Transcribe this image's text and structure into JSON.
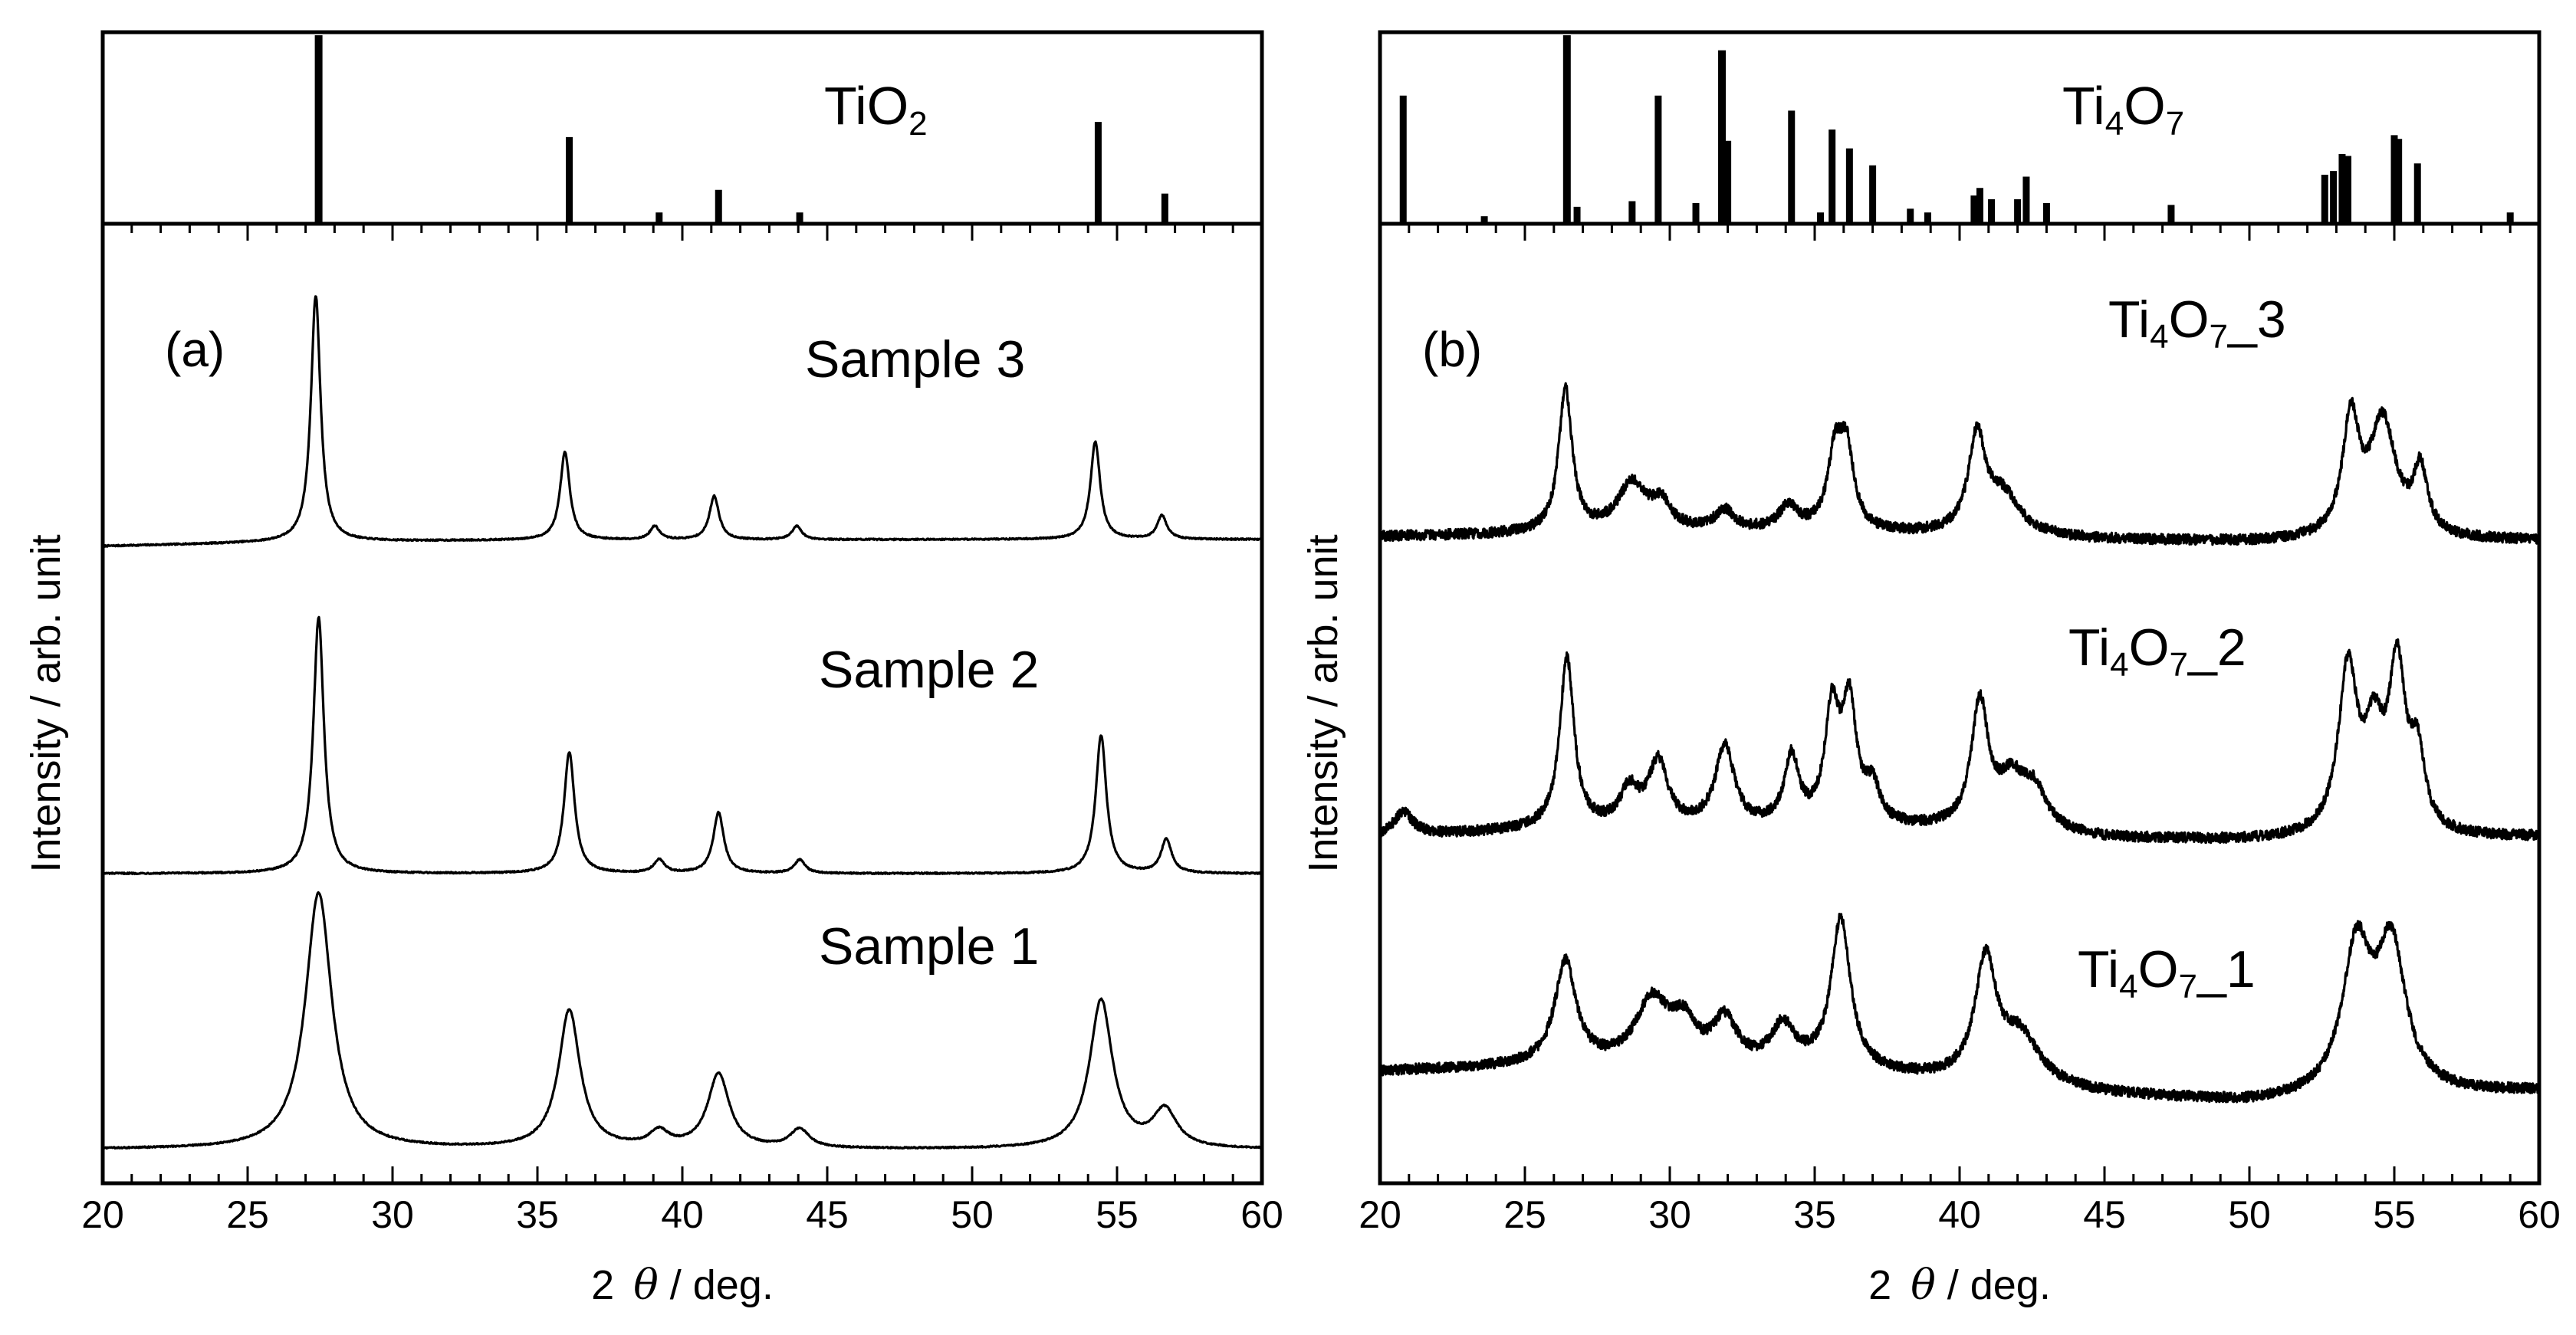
{
  "chart_data": [
    {
      "type": "line",
      "panel_label": "(a)",
      "xlabel_prefix": "2",
      "xlabel_symbol": "θ",
      "xlabel_suffix": " / deg.",
      "ylabel": "Intensity / arb. unit",
      "xlim": [
        20,
        60
      ],
      "xticks": [
        20,
        25,
        30,
        35,
        40,
        45,
        50,
        55,
        60
      ],
      "reference": {
        "name_main": "TiO",
        "name_sub": "2",
        "name_tail": "",
        "peaks": [
          {
            "x": 27.45,
            "intensity": 100
          },
          {
            "x": 36.1,
            "intensity": 46
          },
          {
            "x": 39.2,
            "intensity": 6
          },
          {
            "x": 41.25,
            "intensity": 18
          },
          {
            "x": 44.05,
            "intensity": 6
          },
          {
            "x": 54.35,
            "intensity": 54
          },
          {
            "x": 56.65,
            "intensity": 16
          }
        ]
      },
      "series": [
        {
          "name": "Sample 3",
          "label_text": "Sample 3",
          "baseline": [
            [
              20,
              0.62
            ],
            [
              27,
              0.75
            ],
            [
              35,
              0.8
            ],
            [
              40,
              0.8
            ],
            [
              50,
              0.82
            ],
            [
              60,
              0.82
            ]
          ],
          "noise": 0.02,
          "peaks": [
            {
              "x": 27.35,
              "height": 7.3,
              "width": 0.2
            },
            {
              "x": 35.95,
              "height": 2.6,
              "width": 0.2
            },
            {
              "x": 39.05,
              "height": 0.4,
              "width": 0.2
            },
            {
              "x": 41.1,
              "height": 1.3,
              "width": 0.2
            },
            {
              "x": 43.95,
              "height": 0.4,
              "width": 0.2
            },
            {
              "x": 54.25,
              "height": 2.9,
              "width": 0.2
            },
            {
              "x": 56.55,
              "height": 0.7,
              "width": 0.2
            }
          ]
        },
        {
          "name": "Sample 2",
          "label_text": "Sample 2",
          "baseline": [
            [
              20,
              0
            ],
            [
              60,
              0
            ]
          ],
          "noise": 0.02,
          "peaks": [
            {
              "x": 27.45,
              "height": 7.6,
              "width": 0.22
            },
            {
              "x": 36.1,
              "height": 3.6,
              "width": 0.22
            },
            {
              "x": 39.2,
              "height": 0.4,
              "width": 0.22
            },
            {
              "x": 41.25,
              "height": 1.8,
              "width": 0.22
            },
            {
              "x": 44.05,
              "height": 0.4,
              "width": 0.22
            },
            {
              "x": 54.45,
              "height": 4.1,
              "width": 0.22
            },
            {
              "x": 56.7,
              "height": 1.0,
              "width": 0.22
            }
          ]
        },
        {
          "name": "Sample 1",
          "label_text": "Sample 1",
          "baseline": [
            [
              20,
              0
            ],
            [
              60,
              0
            ]
          ],
          "noise": 0.02,
          "peaks": [
            {
              "x": 27.45,
              "height": 7.6,
              "width": 0.55
            },
            {
              "x": 36.1,
              "height": 4.1,
              "width": 0.45
            },
            {
              "x": 39.2,
              "height": 0.45,
              "width": 0.4
            },
            {
              "x": 41.25,
              "height": 2.2,
              "width": 0.45
            },
            {
              "x": 44.05,
              "height": 0.55,
              "width": 0.4
            },
            {
              "x": 54.45,
              "height": 4.4,
              "width": 0.48
            },
            {
              "x": 56.65,
              "height": 1.1,
              "width": 0.5
            }
          ]
        }
      ]
    },
    {
      "type": "line",
      "panel_label": "(b)",
      "xlabel_prefix": "2",
      "xlabel_symbol": "θ",
      "xlabel_suffix": " / deg.",
      "ylabel": "Intensity / arb. unit",
      "xlim": [
        20,
        60
      ],
      "xticks": [
        20,
        25,
        30,
        35,
        40,
        45,
        50,
        55,
        60
      ],
      "reference": {
        "name_main": "Ti",
        "name_sub": "4",
        "name_tail": "O",
        "name_sub2": "7",
        "peaks": [
          {
            "x": 20.8,
            "intensity": 68
          },
          {
            "x": 23.6,
            "intensity": 4
          },
          {
            "x": 26.45,
            "intensity": 100
          },
          {
            "x": 26.8,
            "intensity": 9
          },
          {
            "x": 28.7,
            "intensity": 12
          },
          {
            "x": 29.6,
            "intensity": 68
          },
          {
            "x": 30.9,
            "intensity": 11
          },
          {
            "x": 31.8,
            "intensity": 92
          },
          {
            "x": 32.0,
            "intensity": 44
          },
          {
            "x": 34.2,
            "intensity": 60
          },
          {
            "x": 35.2,
            "intensity": 6
          },
          {
            "x": 35.6,
            "intensity": 50
          },
          {
            "x": 36.2,
            "intensity": 40
          },
          {
            "x": 37.0,
            "intensity": 31
          },
          {
            "x": 38.3,
            "intensity": 8
          },
          {
            "x": 38.9,
            "intensity": 6
          },
          {
            "x": 40.5,
            "intensity": 15
          },
          {
            "x": 40.7,
            "intensity": 19
          },
          {
            "x": 41.1,
            "intensity": 13
          },
          {
            "x": 42.0,
            "intensity": 13
          },
          {
            "x": 42.3,
            "intensity": 25
          },
          {
            "x": 43.0,
            "intensity": 11
          },
          {
            "x": 47.3,
            "intensity": 10
          },
          {
            "x": 52.6,
            "intensity": 26
          },
          {
            "x": 52.9,
            "intensity": 28
          },
          {
            "x": 53.2,
            "intensity": 37
          },
          {
            "x": 53.4,
            "intensity": 36
          },
          {
            "x": 55.0,
            "intensity": 47
          },
          {
            "x": 55.15,
            "intensity": 45
          },
          {
            "x": 55.8,
            "intensity": 32
          },
          {
            "x": 59.0,
            "intensity": 6
          }
        ]
      },
      "series": [
        {
          "name": "Ti4O7_3",
          "label_main": "Ti",
          "label_sub": "4",
          "label_tail": "O",
          "label_sub2": "7",
          "label_end": "_3",
          "baseline": [
            [
              20,
              0.15
            ],
            [
              25,
              0.2
            ],
            [
              30,
              0.25
            ],
            [
              35,
              0.25
            ],
            [
              40,
              0.15
            ],
            [
              45,
              0.05
            ],
            [
              50,
              0.0
            ],
            [
              60,
              0.05
            ]
          ],
          "noise": 0.13,
          "peaks": [
            {
              "x": 26.4,
              "height": 3.6,
              "width": 0.28
            },
            {
              "x": 28.7,
              "height": 1.2,
              "width": 0.6
            },
            {
              "x": 29.7,
              "height": 0.6,
              "width": 0.4
            },
            {
              "x": 31.9,
              "height": 0.5,
              "width": 0.4
            },
            {
              "x": 34.1,
              "height": 0.6,
              "width": 0.4
            },
            {
              "x": 35.7,
              "height": 1.8,
              "width": 0.3
            },
            {
              "x": 36.1,
              "height": 1.9,
              "width": 0.3
            },
            {
              "x": 40.6,
              "height": 2.4,
              "width": 0.35
            },
            {
              "x": 41.5,
              "height": 1.0,
              "width": 0.7
            },
            {
              "x": 53.5,
              "height": 2.9,
              "width": 0.35
            },
            {
              "x": 54.6,
              "height": 2.9,
              "width": 0.55
            },
            {
              "x": 55.9,
              "height": 1.6,
              "width": 0.3
            }
          ]
        },
        {
          "name": "Ti4O7_2",
          "label_main": "Ti",
          "label_sub": "4",
          "label_tail": "O",
          "label_sub2": "7",
          "label_end": "_2",
          "baseline": [
            [
              20,
              0.1
            ],
            [
              25,
              0.25
            ],
            [
              30,
              0.3
            ],
            [
              35,
              0.3
            ],
            [
              40,
              0.25
            ],
            [
              45,
              0.05
            ],
            [
              50,
              0.0
            ],
            [
              60,
              0.1
            ]
          ],
          "noise": 0.13,
          "peaks": [
            {
              "x": 20.8,
              "height": 0.6,
              "width": 0.4
            },
            {
              "x": 26.45,
              "height": 4.3,
              "width": 0.3
            },
            {
              "x": 28.6,
              "height": 0.9,
              "width": 0.4
            },
            {
              "x": 29.6,
              "height": 1.6,
              "width": 0.4
            },
            {
              "x": 31.9,
              "height": 2.0,
              "width": 0.4
            },
            {
              "x": 34.2,
              "height": 1.7,
              "width": 0.3
            },
            {
              "x": 35.6,
              "height": 2.8,
              "width": 0.3
            },
            {
              "x": 36.2,
              "height": 2.9,
              "width": 0.3
            },
            {
              "x": 37.0,
              "height": 0.9,
              "width": 0.3
            },
            {
              "x": 40.7,
              "height": 3.1,
              "width": 0.35
            },
            {
              "x": 41.8,
              "height": 1.2,
              "width": 0.6
            },
            {
              "x": 42.6,
              "height": 0.9,
              "width": 0.5
            },
            {
              "x": 53.4,
              "height": 4.1,
              "width": 0.4
            },
            {
              "x": 54.3,
              "height": 2.2,
              "width": 0.4
            },
            {
              "x": 55.1,
              "height": 4.0,
              "width": 0.35
            },
            {
              "x": 55.8,
              "height": 1.8,
              "width": 0.3
            }
          ]
        },
        {
          "name": "Ti4O7_1",
          "label_main": "Ti",
          "label_sub": "4",
          "label_tail": "O",
          "label_sub2": "7",
          "label_end": "_1",
          "baseline": [
            [
              20,
              0.8
            ],
            [
              25,
              0.9
            ],
            [
              30,
              0.9
            ],
            [
              35,
              0.8
            ],
            [
              40,
              0.5
            ],
            [
              45,
              0.2
            ],
            [
              50,
              0.0
            ],
            [
              60,
              0.3
            ]
          ],
          "noise": 0.13,
          "peaks": [
            {
              "x": 26.4,
              "height": 2.6,
              "width": 0.45
            },
            {
              "x": 29.4,
              "height": 1.6,
              "width": 0.7
            },
            {
              "x": 30.5,
              "height": 0.9,
              "width": 0.5
            },
            {
              "x": 31.9,
              "height": 1.1,
              "width": 0.5
            },
            {
              "x": 33.9,
              "height": 1.0,
              "width": 0.5
            },
            {
              "x": 35.9,
              "height": 3.8,
              "width": 0.4
            },
            {
              "x": 40.9,
              "height": 3.0,
              "width": 0.45
            },
            {
              "x": 42.1,
              "height": 1.2,
              "width": 0.8
            },
            {
              "x": 53.7,
              "height": 3.6,
              "width": 0.6
            },
            {
              "x": 54.9,
              "height": 3.6,
              "width": 0.6
            }
          ]
        }
      ]
    }
  ]
}
